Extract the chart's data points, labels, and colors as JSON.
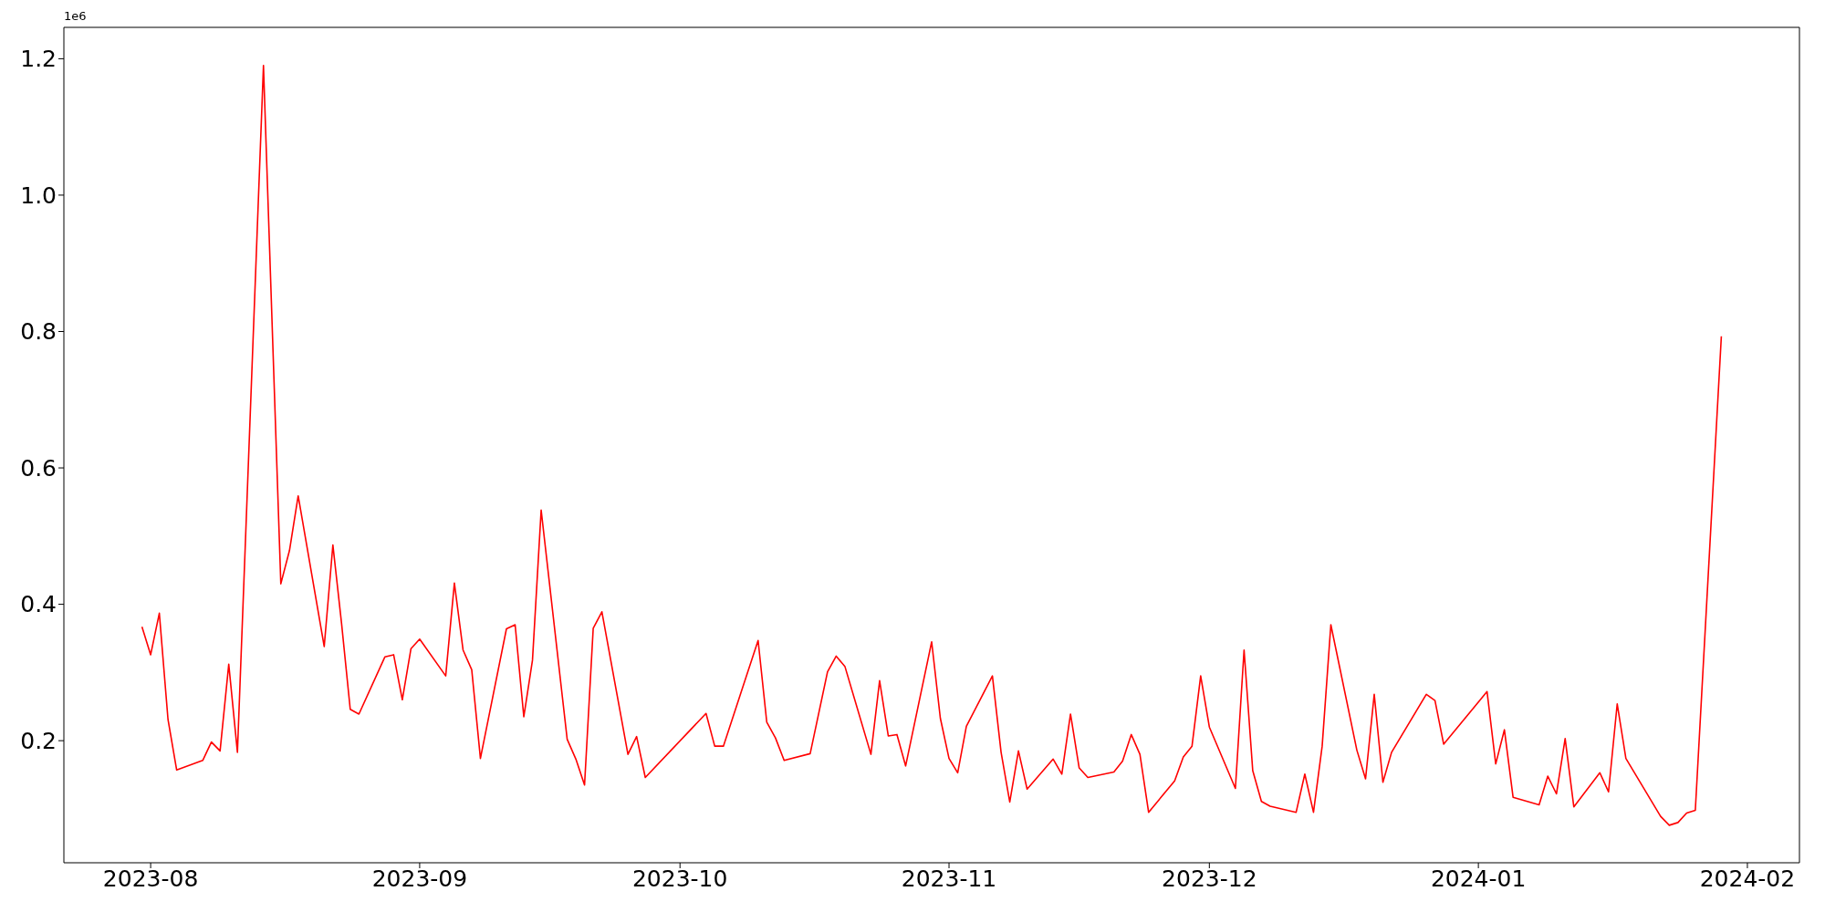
{
  "chart_data": {
    "type": "line",
    "x": [
      "2023-07-31",
      "2023-08-01",
      "2023-08-02",
      "2023-08-03",
      "2023-08-04",
      "2023-08-07",
      "2023-08-08",
      "2023-08-09",
      "2023-08-10",
      "2023-08-11",
      "2023-08-14",
      "2023-08-16",
      "2023-08-17",
      "2023-08-18",
      "2023-08-21",
      "2023-08-22",
      "2023-08-23",
      "2023-08-24",
      "2023-08-25",
      "2023-08-28",
      "2023-08-29",
      "2023-08-30",
      "2023-08-31",
      "2023-09-01",
      "2023-09-04",
      "2023-09-05",
      "2023-09-06",
      "2023-09-07",
      "2023-09-08",
      "2023-09-11",
      "2023-09-12",
      "2023-09-13",
      "2023-09-14",
      "2023-09-15",
      "2023-09-18",
      "2023-09-19",
      "2023-09-20",
      "2023-09-21",
      "2023-09-22",
      "2023-09-25",
      "2023-09-26",
      "2023-09-27",
      "2023-10-04",
      "2023-10-05",
      "2023-10-06",
      "2023-10-10",
      "2023-10-11",
      "2023-10-12",
      "2023-10-13",
      "2023-10-16",
      "2023-10-18",
      "2023-10-19",
      "2023-10-20",
      "2023-10-23",
      "2023-10-24",
      "2023-10-25",
      "2023-10-26",
      "2023-10-27",
      "2023-10-30",
      "2023-10-31",
      "2023-11-01",
      "2023-11-02",
      "2023-11-03",
      "2023-11-06",
      "2023-11-07",
      "2023-11-08",
      "2023-11-09",
      "2023-11-10",
      "2023-11-13",
      "2023-11-14",
      "2023-11-15",
      "2023-11-16",
      "2023-11-17",
      "2023-11-20",
      "2023-11-21",
      "2023-11-22",
      "2023-11-23",
      "2023-11-24",
      "2023-11-27",
      "2023-11-28",
      "2023-11-29",
      "2023-11-30",
      "2023-12-01",
      "2023-12-04",
      "2023-12-05",
      "2023-12-06",
      "2023-12-07",
      "2023-12-08",
      "2023-12-11",
      "2023-12-12",
      "2023-12-13",
      "2023-12-14",
      "2023-12-15",
      "2023-12-18",
      "2023-12-19",
      "2023-12-20",
      "2023-12-21",
      "2023-12-22",
      "2023-12-26",
      "2023-12-27",
      "2023-12-28",
      "2024-01-02",
      "2024-01-03",
      "2024-01-04",
      "2024-01-05",
      "2024-01-08",
      "2024-01-09",
      "2024-01-10",
      "2024-01-11",
      "2024-01-12",
      "2024-01-15",
      "2024-01-16",
      "2024-01-17",
      "2024-01-18",
      "2024-01-22",
      "2024-01-23",
      "2024-01-24",
      "2024-01-25",
      "2024-01-26",
      "2024-01-29"
    ],
    "series": [
      {
        "color": "#ff0000",
        "values": [
          0.367,
          0.326,
          0.387,
          0.231,
          0.157,
          0.171,
          0.198,
          0.185,
          0.312,
          0.183,
          1.19,
          0.43,
          0.479,
          0.559,
          0.338,
          0.487,
          0.372,
          0.246,
          0.239,
          0.323,
          0.326,
          0.26,
          0.335,
          0.349,
          0.295,
          0.431,
          0.333,
          0.304,
          0.174,
          0.364,
          0.37,
          0.235,
          0.318,
          0.538,
          0.202,
          0.173,
          0.135,
          0.365,
          0.389,
          0.18,
          0.206,
          0.146,
          0.24,
          0.192,
          0.192,
          0.347,
          0.227,
          0.204,
          0.171,
          0.181,
          0.301,
          0.324,
          0.309,
          0.18,
          0.288,
          0.207,
          0.209,
          0.163,
          0.345,
          0.233,
          0.174,
          0.153,
          0.221,
          0.295,
          0.183,
          0.11,
          0.185,
          0.129,
          0.173,
          0.151,
          0.239,
          0.16,
          0.146,
          0.154,
          0.17,
          0.209,
          0.18,
          0.095,
          0.141,
          0.176,
          0.192,
          0.295,
          0.22,
          0.13,
          0.333,
          0.156,
          0.111,
          0.104,
          0.095,
          0.151,
          0.095,
          0.192,
          0.37,
          0.186,
          0.144,
          0.268,
          0.139,
          0.183,
          0.268,
          0.259,
          0.195,
          0.272,
          0.166,
          0.216,
          0.117,
          0.106,
          0.148,
          0.122,
          0.203,
          0.103,
          0.153,
          0.125,
          0.254,
          0.174,
          0.089,
          0.076,
          0.08,
          0.094,
          0.098,
          0.793
        ]
      }
    ],
    "xlim": [
      "2023-07-22",
      "2024-02-07"
    ],
    "xticks": [
      "2023-08",
      "2023-09",
      "2023-10",
      "2023-11",
      "2023-12",
      "2024-01",
      "2024-02"
    ],
    "ylim": [
      0.021,
      1.246
    ],
    "yticks": [
      0.2,
      0.4,
      0.6,
      0.8,
      {
        "value": 1,
        "label": "1.0"
      },
      1.2
    ],
    "annotations": [
      "1e6"
    ],
    "grid": false,
    "legend": false,
    "marker": "none",
    "line_style": "solid"
  }
}
